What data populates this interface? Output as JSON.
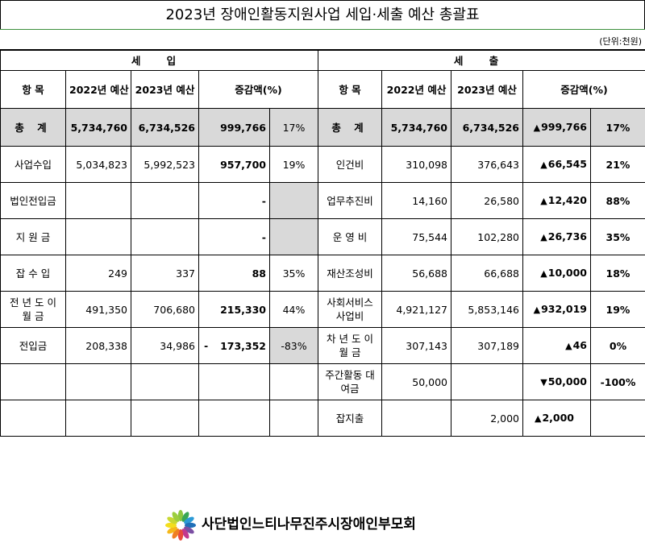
{
  "title": "2023년 장애인활동지원사업 세입·세출 예산 총괄표",
  "unit": "(단위:천원)",
  "revenue": {
    "section_title": "세 입",
    "headers": {
      "item": "항 목",
      "y2022": "2022년 예산",
      "y2023": "2023년 예산",
      "change": "증감액(%)"
    },
    "total": {
      "label": "총 계",
      "y2022": "5,734,760",
      "y2023": "6,734,526",
      "diff": "999,766",
      "pct": "17%"
    },
    "rows": [
      {
        "label": "사업수입",
        "y2022": "5,034,823",
        "y2023": "5,992,523",
        "diff": "957,700",
        "pct": "19%"
      },
      {
        "label": "법인전입금",
        "y2022": "",
        "y2023": "",
        "diff": "-",
        "pct": ""
      },
      {
        "label": "지 원 금",
        "y2022": "",
        "y2023": "",
        "diff": "-",
        "pct": ""
      },
      {
        "label": "잡 수 입",
        "y2022": "249",
        "y2023": "337",
        "diff": "88",
        "pct": "35%"
      },
      {
        "label": "전 년 도\n이 월 금",
        "y2022": "491,350",
        "y2023": "706,680",
        "diff": "215,330",
        "pct": "44%"
      },
      {
        "label": "전입금",
        "y2022": "208,338",
        "y2023": "34,986",
        "diff_sign": "-",
        "diff": "173,352",
        "pct": "-83%"
      }
    ]
  },
  "expense": {
    "section_title": "세 출",
    "headers": {
      "item": "항 목",
      "y2022": "2022년 예산",
      "y2023": "2023년 예산",
      "change": "증감액(%)"
    },
    "total": {
      "label": "총 계",
      "y2022": "5,734,760",
      "y2023": "6,734,526",
      "diff": "999,766",
      "pct": "17%"
    },
    "rows": [
      {
        "label": "인건비",
        "y2022": "310,098",
        "y2023": "376,643",
        "diff": "66,545",
        "pct": "21%"
      },
      {
        "label": "업무추진비",
        "y2022": "14,160",
        "y2023": "26,580",
        "diff": "12,420",
        "pct": "88%"
      },
      {
        "label": "운 영 비",
        "y2022": "75,544",
        "y2023": "102,280",
        "diff": "26,736",
        "pct": "35%"
      },
      {
        "label": "재산조성비",
        "y2022": "56,688",
        "y2023": "66,688",
        "diff": "10,000",
        "pct": "18%"
      },
      {
        "label": "사회서비스\n사업비",
        "y2022": "4,921,127",
        "y2023": "5,853,146",
        "diff": "932,019",
        "pct": "19%"
      },
      {
        "label": "차 년 도\n이 월 금",
        "y2022": "307,143",
        "y2023": "307,189",
        "diff": "46",
        "pct": "0%"
      },
      {
        "label": "주간활동\n대여금",
        "y2022": "50,000",
        "y2023": "",
        "diff": "50,000",
        "pct": "-100%"
      },
      {
        "label": "잡지출",
        "y2022": "",
        "y2023": "2,000",
        "diff": "2,000",
        "pct": ""
      }
    ]
  },
  "symbols": {
    "up": "▲",
    "down": "▼"
  },
  "footer": {
    "org_name": "사단법인느티나무진주시장애인부모회",
    "logo_icon": "pinwheel-leaf-logo-icon"
  },
  "colors": {
    "total_bg": "#d9d9d9",
    "title_divider": "#3c8f3c"
  }
}
